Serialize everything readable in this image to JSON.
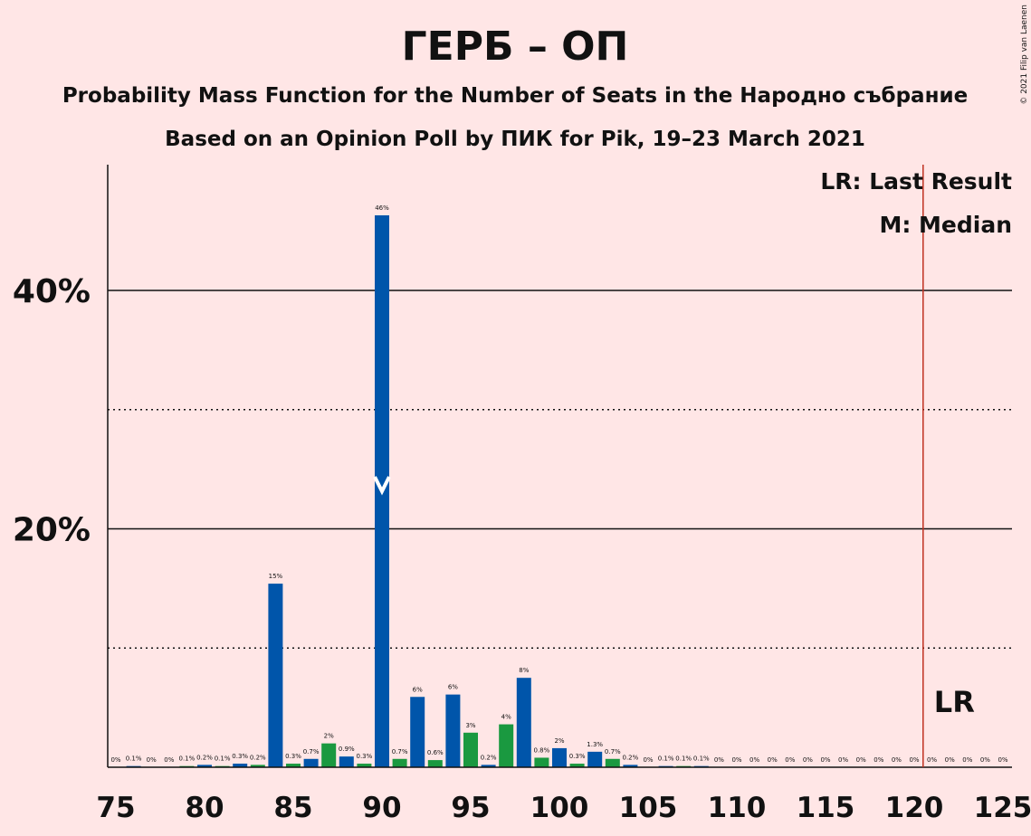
{
  "title": "ГЕРБ – ОП",
  "subtitle": "Probability Mass Function for the Number of Seats in the Народно събрание",
  "subtitle2": "Based on an Opinion Poll by ПИК for Pik, 19–23 March 2021",
  "copyright": "© 2021 Filip van Laenen",
  "legend": {
    "lr": "LR: Last Result",
    "m": "M: Median"
  },
  "lr_marker_label": "LR",
  "colors": {
    "background": "#ffe6e6",
    "blue": "#0055aa",
    "green": "#1a9940",
    "lr_line": "#c03020",
    "text": "#111111"
  },
  "chart_data": {
    "type": "bar",
    "xlim": [
      75,
      125
    ],
    "ylim": [
      0,
      50
    ],
    "x_ticks": [
      "75",
      "80",
      "85",
      "90",
      "95",
      "100",
      "105",
      "110",
      "115",
      "120",
      "125"
    ],
    "y_ticks": [
      "20%",
      "40%"
    ],
    "y_solid_gridlines": [
      20,
      40
    ],
    "y_dotted_gridlines": [
      10,
      30
    ],
    "last_result": 121,
    "median": 90,
    "bars": [
      {
        "x": 76,
        "value": 0.1,
        "label": "0.1%"
      },
      {
        "x": 77,
        "value": 0,
        "label": "0%"
      },
      {
        "x": 78,
        "value": 0,
        "label": "0%"
      },
      {
        "x": 79,
        "value": 0.1,
        "label": "0.1%"
      },
      {
        "x": 80,
        "value": 0.2,
        "label": "0.2%"
      },
      {
        "x": 81,
        "value": 0.1,
        "label": "0.1%"
      },
      {
        "x": 82,
        "value": 0.3,
        "label": "0.3%"
      },
      {
        "x": 83,
        "value": 0.2,
        "label": "0.2%"
      },
      {
        "x": 84,
        "value": 15.4,
        "label": "15%"
      },
      {
        "x": 85,
        "value": 0.3,
        "label": "0.3%"
      },
      {
        "x": 86,
        "value": 0.7,
        "label": "0.7%"
      },
      {
        "x": 87,
        "value": 2.0,
        "label": "2%"
      },
      {
        "x": 88,
        "value": 0.9,
        "label": "0.9%"
      },
      {
        "x": 89,
        "value": 0.3,
        "label": "0.3%"
      },
      {
        "x": 90,
        "value": 46.3,
        "label": "46%"
      },
      {
        "x": 91,
        "value": 0.7,
        "label": "0.7%"
      },
      {
        "x": 92,
        "value": 5.9,
        "label": "6%"
      },
      {
        "x": 93,
        "value": 0.6,
        "label": "0.6%"
      },
      {
        "x": 94,
        "value": 6.1,
        "label": "6%"
      },
      {
        "x": 95,
        "value": 2.9,
        "label": "3%"
      },
      {
        "x": 96,
        "value": 0.2,
        "label": "0.2%"
      },
      {
        "x": 97,
        "value": 3.6,
        "label": "4%"
      },
      {
        "x": 98,
        "value": 7.5,
        "label": "8%"
      },
      {
        "x": 99,
        "value": 0.8,
        "label": "0.8%"
      },
      {
        "x": 100,
        "value": 1.6,
        "label": "2%"
      },
      {
        "x": 101,
        "value": 0.3,
        "label": "0.3%"
      },
      {
        "x": 102,
        "value": 1.3,
        "label": "1.3%"
      },
      {
        "x": 103,
        "value": 0.7,
        "label": "0.7%"
      },
      {
        "x": 104,
        "value": 0.2,
        "label": "0.2%"
      },
      {
        "x": 105,
        "value": 0,
        "label": "0%"
      },
      {
        "x": 106,
        "value": 0.1,
        "label": "0.1%"
      },
      {
        "x": 107,
        "value": 0.1,
        "label": "0.1%"
      },
      {
        "x": 108,
        "value": 0.1,
        "label": "0.1%"
      },
      {
        "x": 109,
        "value": 0,
        "label": "0%"
      },
      {
        "x": 110,
        "value": 0,
        "label": "0%"
      },
      {
        "x": 111,
        "value": 0,
        "label": "0%"
      },
      {
        "x": 112,
        "value": 0,
        "label": "0%"
      },
      {
        "x": 113,
        "value": 0,
        "label": "0%"
      },
      {
        "x": 114,
        "value": 0,
        "label": "0%"
      },
      {
        "x": 115,
        "value": 0,
        "label": "0%"
      },
      {
        "x": 116,
        "value": 0,
        "label": "0%"
      },
      {
        "x": 117,
        "value": 0,
        "label": "0%"
      },
      {
        "x": 118,
        "value": 0,
        "label": "0%"
      },
      {
        "x": 119,
        "value": 0,
        "label": "0%"
      },
      {
        "x": 120,
        "value": 0,
        "label": "0%"
      },
      {
        "x": 121,
        "value": 0,
        "label": "0%"
      },
      {
        "x": 122,
        "value": 0,
        "label": "0%"
      },
      {
        "x": 123,
        "value": 0,
        "label": "0%"
      },
      {
        "x": 124,
        "value": 0,
        "label": "0%"
      },
      {
        "x": 125,
        "value": 0,
        "label": "0%"
      }
    ],
    "first_bar_label": {
      "x": 75,
      "label": "0%"
    }
  }
}
